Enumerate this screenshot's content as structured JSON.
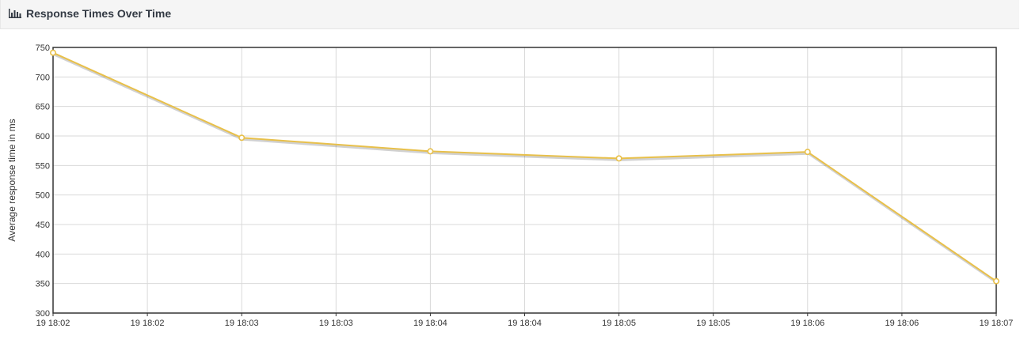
{
  "panel": {
    "title": "Response Times Over Time",
    "icon": "bar-chart-icon"
  },
  "chart_data": {
    "type": "line",
    "title": "",
    "xlabel": "",
    "ylabel": "Average response time in ms",
    "ylim": [
      300,
      750
    ],
    "yticks": [
      300,
      350,
      400,
      450,
      500,
      550,
      600,
      650,
      700,
      750
    ],
    "xtick_labels": [
      "19 18:02",
      "19 18:02",
      "19 18:03",
      "19 18:03",
      "19 18:04",
      "19 18:04",
      "19 18:05",
      "19 18:05",
      "19 18:06",
      "19 18:06",
      "19 18:07"
    ],
    "grid": true,
    "series": [
      {
        "color": "#e8c04a",
        "x": [
          "19 18:02",
          "19 18:03",
          "19 18:04",
          "19 18:05",
          "19 18:06",
          "19 18:07"
        ],
        "values": [
          741,
          597,
          574,
          562,
          573,
          354
        ]
      }
    ]
  }
}
